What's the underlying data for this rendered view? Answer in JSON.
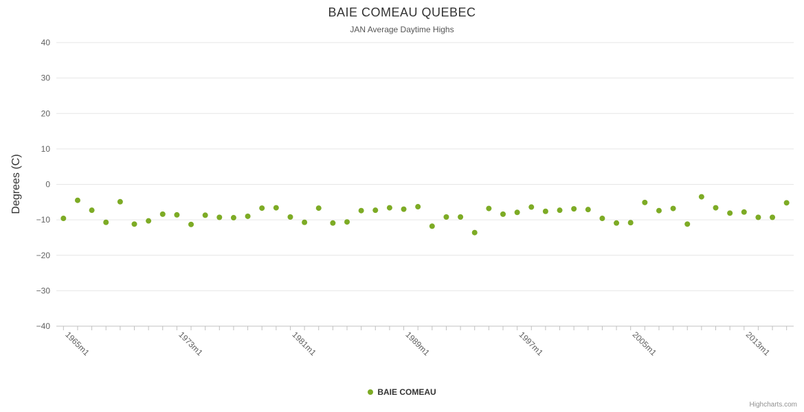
{
  "chart": {
    "title": "BAIE COMEAU QUEBEC",
    "subtitle": "JAN Average Daytime Highs",
    "y_axis_title": "Degrees (C)",
    "legend_label": "BAIE COMEAU",
    "credits": "Highcharts.com"
  },
  "chart_data": {
    "type": "scatter",
    "title": "BAIE COMEAU QUEBEC",
    "subtitle": "JAN Average Daytime Highs",
    "xlabel": "",
    "ylabel": "Degrees (C)",
    "ylim": [
      -40,
      40
    ],
    "y_tick_step": 10,
    "grid": true,
    "legend_position": "bottom",
    "marker_color": "#7dab25",
    "grid_color": "#e6e6e6",
    "axis_line_color": "#c0c0c0",
    "tick_label_color": "#606060",
    "x_label_every": 8,
    "x_labels_shown": [
      "1965m1",
      "1973m1",
      "1981m1",
      "1989m1",
      "1997m1",
      "2005m1",
      "2013m1"
    ],
    "categories": [
      "1965m1",
      "1966m1",
      "1967m1",
      "1968m1",
      "1969m1",
      "1970m1",
      "1971m1",
      "1972m1",
      "1973m1",
      "1974m1",
      "1975m1",
      "1976m1",
      "1977m1",
      "1978m1",
      "1979m1",
      "1980m1",
      "1981m1",
      "1982m1",
      "1983m1",
      "1984m1",
      "1985m1",
      "1986m1",
      "1987m1",
      "1988m1",
      "1989m1",
      "1990m1",
      "1991m1",
      "1992m1",
      "1993m1",
      "1994m1",
      "1995m1",
      "1996m1",
      "1997m1",
      "1998m1",
      "1999m1",
      "2000m1",
      "2001m1",
      "2002m1",
      "2003m1",
      "2004m1",
      "2005m1",
      "2006m1",
      "2007m1",
      "2008m1",
      "2009m1",
      "2010m1",
      "2011m1",
      "2012m1",
      "2013m1",
      "2014m1",
      "2015m1",
      "2016m1"
    ],
    "series": [
      {
        "name": "BAIE COMEAU",
        "values": [
          -9.6,
          -4.5,
          -7.3,
          -10.7,
          -4.9,
          -11.2,
          -10.3,
          -8.4,
          -8.6,
          -11.3,
          -8.7,
          -9.3,
          -9.4,
          -9.0,
          -6.7,
          -6.6,
          -9.2,
          -10.7,
          -6.7,
          -10.9,
          -10.6,
          -7.4,
          -7.3,
          -6.6,
          -7.0,
          -6.3,
          -11.8,
          -9.2,
          -9.2,
          -13.6,
          -6.8,
          -8.4,
          -7.9,
          -6.4,
          -7.6,
          -7.3,
          -6.9,
          -7.1,
          -9.6,
          -10.9,
          -10.8,
          -5.1,
          -7.4,
          -6.8,
          -11.2,
          -3.5,
          -6.6,
          -8.1,
          -7.8,
          -9.3,
          -9.3,
          -5.2
        ]
      }
    ]
  }
}
